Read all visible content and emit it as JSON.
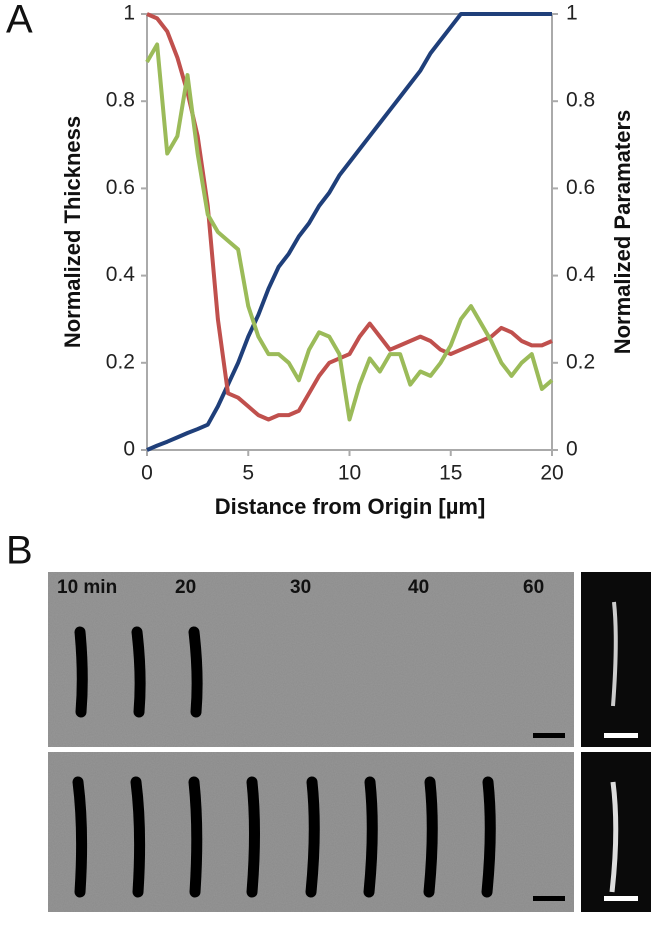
{
  "panel_labels": [
    "A",
    "B"
  ],
  "chart_data": {
    "type": "line",
    "xlabel": "Distance from Origin [µm]",
    "ylabel": "Normalized Thickness",
    "y2label": "Normalized Paramaters",
    "x": [
      0,
      0.5,
      1,
      1.5,
      2,
      2.5,
      3,
      3.5,
      4,
      4.5,
      5,
      5.5,
      6,
      6.5,
      7,
      7.5,
      8,
      8.5,
      9,
      9.5,
      10,
      10.5,
      11,
      11.5,
      12,
      12.5,
      13,
      13.5,
      14,
      14.5,
      15,
      15.5,
      16,
      16.5,
      17,
      17.5,
      18,
      18.5,
      19,
      19.5,
      20
    ],
    "series": [
      {
        "color": "#1f3f7a",
        "axis": "y",
        "values": [
          0,
          0.01,
          0.019,
          0.029,
          0.039,
          0.048,
          0.058,
          0.1,
          0.15,
          0.2,
          0.26,
          0.31,
          0.37,
          0.42,
          0.45,
          0.49,
          0.52,
          0.56,
          0.59,
          0.63,
          0.66,
          0.69,
          0.72,
          0.75,
          0.78,
          0.81,
          0.84,
          0.87,
          0.91,
          0.94,
          0.97,
          1,
          1,
          1,
          1,
          1,
          1,
          1,
          1,
          1,
          1
        ]
      },
      {
        "color": "#c0504d",
        "axis": "y2",
        "values": [
          1,
          0.99,
          0.96,
          0.9,
          0.82,
          0.72,
          0.56,
          0.3,
          0.13,
          0.12,
          0.1,
          0.08,
          0.07,
          0.08,
          0.08,
          0.09,
          0.13,
          0.17,
          0.2,
          0.21,
          0.22,
          0.26,
          0.29,
          0.26,
          0.23,
          0.24,
          0.25,
          0.26,
          0.25,
          0.23,
          0.22,
          0.23,
          0.24,
          0.25,
          0.26,
          0.28,
          0.27,
          0.25,
          0.24,
          0.24,
          0.25
        ]
      },
      {
        "color": "#9bbb59",
        "axis": "y2",
        "values": [
          0.89,
          0.93,
          0.68,
          0.72,
          0.86,
          0.68,
          0.54,
          0.5,
          0.48,
          0.46,
          0.33,
          0.26,
          0.22,
          0.22,
          0.2,
          0.16,
          0.23,
          0.27,
          0.26,
          0.22,
          0.07,
          0.15,
          0.21,
          0.18,
          0.22,
          0.22,
          0.15,
          0.18,
          0.17,
          0.2,
          0.24,
          0.3,
          0.33,
          0.29,
          0.25,
          0.2,
          0.17,
          0.2,
          0.22,
          0.14,
          0.16
        ]
      }
    ],
    "xlim": [
      0,
      20
    ],
    "xticks": [
      0,
      5,
      10,
      15,
      20
    ],
    "ylim": [
      0,
      1
    ],
    "yticks": [
      0,
      0.2,
      0.4,
      0.6,
      0.8,
      1
    ],
    "y2lim": [
      0,
      1
    ],
    "y2ticks": [
      0,
      0.2,
      0.4,
      0.6,
      0.8,
      1
    ]
  },
  "timelapse": {
    "labels": [
      "10 min",
      "20",
      "30",
      "40",
      "60"
    ]
  }
}
